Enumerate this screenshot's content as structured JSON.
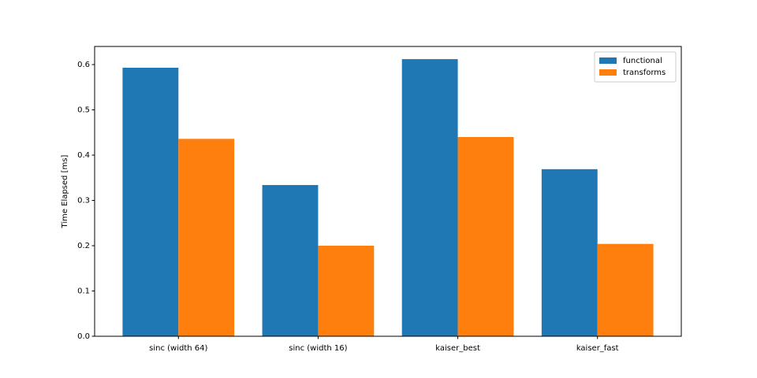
{
  "chart_data": {
    "type": "bar",
    "y_label": "Time Elapsed [ms]",
    "categories": [
      "sinc (width 64)",
      "sinc (width 16)",
      "kaiser_best",
      "kaiser_fast"
    ],
    "series": [
      {
        "name": "functional",
        "color": "#1f77b4",
        "values": [
          0.593,
          0.334,
          0.612,
          0.369
        ]
      },
      {
        "name": "transforms",
        "color": "#ff7f0e",
        "values": [
          0.436,
          0.2,
          0.44,
          0.204
        ]
      }
    ],
    "ylim": [
      0,
      0.64
    ],
    "yticks": [
      {
        "value": 0,
        "label": "0.0"
      },
      0.1,
      0.2,
      0.3,
      0.4,
      0.5,
      0.6
    ],
    "legend": "upper right"
  }
}
